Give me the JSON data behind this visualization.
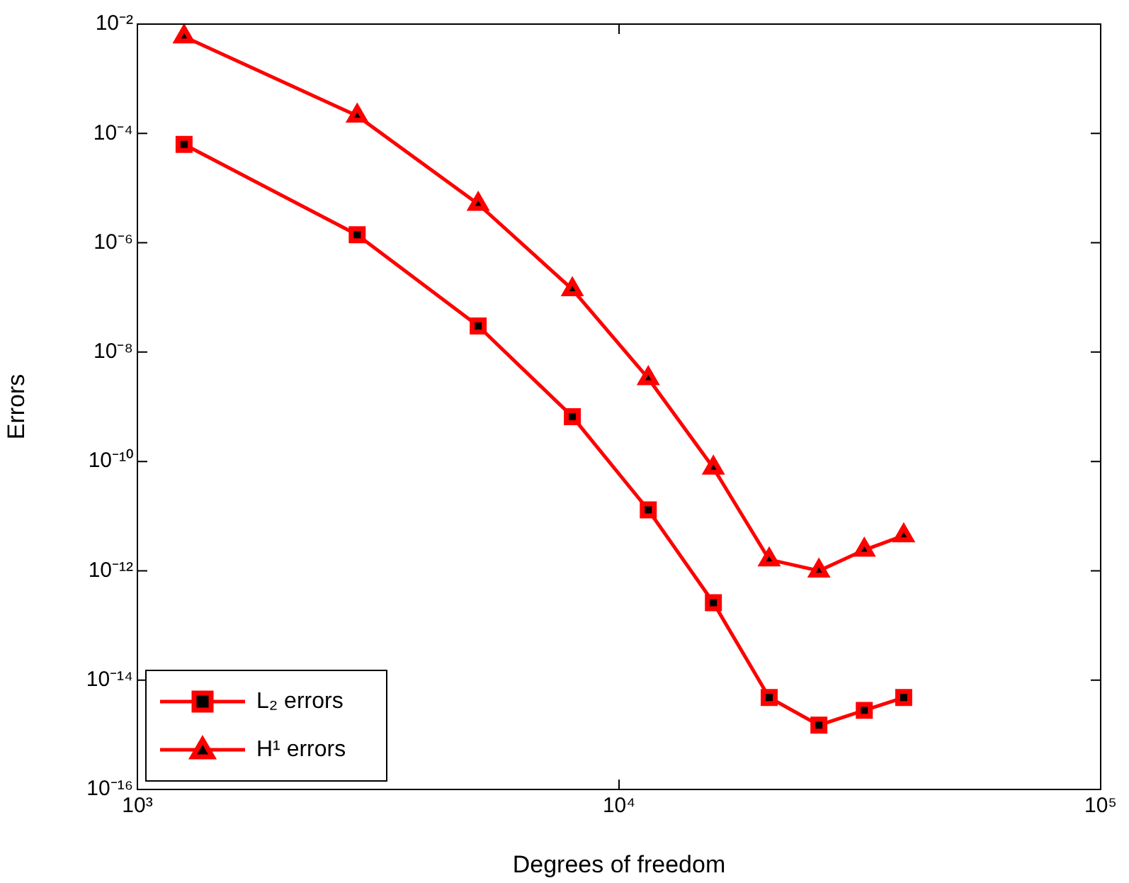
{
  "chart_data": {
    "type": "line",
    "xlabel": "Degrees of freedom",
    "ylabel": "Errors",
    "log": "xy",
    "grid": false,
    "legend": "bottom left",
    "line_style": "solid",
    "xlim": [
      1000,
      100000
    ],
    "xticks": [
      {
        "value": 1000,
        "label": "10³"
      },
      {
        "value": 10000,
        "label": "10⁴"
      },
      {
        "value": 100000,
        "label": "10⁵"
      }
    ],
    "ylim": [
      1e-16,
      0.01
    ],
    "yticks": [
      {
        "value": 1e-16,
        "label": "10⁻¹⁶"
      },
      {
        "value": 1e-14,
        "label": "10⁻¹⁴"
      },
      {
        "value": 1e-12,
        "label": "10⁻¹²"
      },
      {
        "value": 1e-10,
        "label": "10⁻¹⁰"
      },
      {
        "value": 1e-08,
        "label": "10⁻⁸"
      },
      {
        "value": 1e-06,
        "label": "10⁻⁶"
      },
      {
        "value": 0.0001,
        "label": "10⁻⁴"
      },
      {
        "value": 0.01,
        "label": "10⁻²"
      }
    ],
    "x": [
      1250,
      2860,
      5100,
      8000,
      11500,
      15700,
      20500,
      26000,
      32300,
      39000
    ],
    "series": [
      {
        "name": "L₂ errors",
        "color": "#ff0000",
        "marker": "square",
        "values": [
          6.3e-05,
          1.4e-06,
          3e-08,
          6.6e-10,
          1.3e-11,
          2.6e-13,
          4.8e-15,
          1.5e-15,
          2.8e-15,
          4.8e-15
        ]
      },
      {
        "name": "H¹ errors",
        "color": "#ff0000",
        "marker": "triangle",
        "values": [
          0.0059,
          0.00021,
          5.1e-06,
          1.4e-07,
          3.3e-09,
          7.6e-11,
          1.6e-12,
          1e-12,
          2.4e-12,
          4.4e-12
        ]
      }
    ]
  }
}
